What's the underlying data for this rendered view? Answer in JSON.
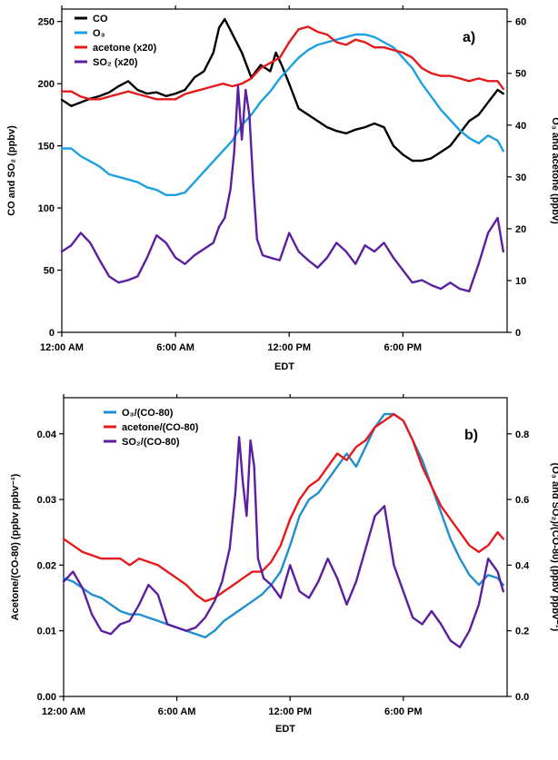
{
  "chart_data": [
    {
      "type": "line",
      "panel_label": "a)",
      "xlabel": "EDT",
      "x_unit": "hour of day (EDT)",
      "xlim": [
        0,
        23.5
      ],
      "xticks": [
        0,
        6,
        12,
        18
      ],
      "xtick_labels": [
        "12:00 AM",
        "6:00 AM",
        "12:00 PM",
        "6:00 PM"
      ],
      "ylabel_left": "CO and SO₂ (ppbv)",
      "ylim_left": [
        0,
        260
      ],
      "yticks_left": [
        0,
        50,
        100,
        150,
        200,
        250
      ],
      "ylabel_right": "O₃ and acetone (ppbv)",
      "ylim_right": [
        0,
        62.4
      ],
      "yticks_right": [
        0,
        10,
        20,
        30,
        40,
        50,
        60
      ],
      "grid": false,
      "legend_position": "top-left",
      "series": [
        {
          "name": "CO",
          "color": "#000000",
          "axis": "left",
          "x": [
            0,
            0.5,
            1,
            1.5,
            2,
            2.5,
            3,
            3.5,
            4,
            4.5,
            5,
            5.5,
            6,
            6.5,
            7,
            7.5,
            8,
            8.3,
            8.6,
            9,
            9.5,
            10,
            10.5,
            11,
            11.3,
            11.6,
            12,
            12.5,
            13,
            13.5,
            14,
            14.5,
            15,
            15.5,
            16,
            16.5,
            17,
            17.5,
            18,
            18.5,
            19,
            19.5,
            20,
            20.5,
            21,
            21.5,
            22,
            22.5,
            23,
            23.3
          ],
          "y": [
            187,
            182,
            185,
            188,
            190,
            193,
            198,
            202,
            195,
            192,
            193,
            190,
            192,
            195,
            205,
            210,
            225,
            245,
            252,
            240,
            225,
            205,
            215,
            210,
            225,
            215,
            200,
            180,
            175,
            170,
            165,
            162,
            160,
            163,
            165,
            168,
            165,
            150,
            143,
            138,
            138,
            140,
            145,
            150,
            160,
            170,
            175,
            185,
            195,
            192
          ]
        },
        {
          "name": "O₃",
          "color": "#1ba1e2",
          "axis": "right",
          "x": [
            0,
            0.5,
            1,
            1.5,
            2,
            2.5,
            3,
            3.5,
            4,
            4.5,
            5,
            5.5,
            6,
            6.5,
            7,
            7.5,
            8,
            8.5,
            9,
            9.5,
            10,
            10.5,
            11,
            11.5,
            12,
            12.5,
            13,
            13.5,
            14,
            14.5,
            15,
            15.5,
            16,
            16.5,
            17,
            17.5,
            18,
            18.5,
            19,
            19.5,
            20,
            20.5,
            21,
            21.5,
            22,
            22.5,
            23,
            23.3
          ],
          "y": [
            35.5,
            35.5,
            34,
            33,
            32,
            30.5,
            30,
            29.5,
            29,
            28,
            27.5,
            26.5,
            26.5,
            27,
            29,
            31,
            33,
            35,
            37,
            40,
            42,
            44.5,
            46.5,
            49,
            51,
            53,
            54.5,
            55.5,
            56,
            56.5,
            57,
            57.5,
            57.5,
            57,
            56,
            55,
            53,
            51,
            48,
            45.5,
            43,
            41,
            39,
            37.5,
            36.5,
            38,
            37,
            35
          ]
        },
        {
          "name": "acetone (x20)",
          "color": "#e41a1c",
          "axis": "right",
          "x": [
            0,
            0.5,
            1,
            1.5,
            2,
            2.5,
            3,
            3.5,
            4,
            4.5,
            5,
            5.5,
            6,
            6.5,
            7,
            7.5,
            8,
            8.5,
            9,
            9.5,
            10,
            10.5,
            11,
            11.5,
            12,
            12.5,
            13,
            13.5,
            14,
            14.5,
            15,
            15.5,
            16,
            16.5,
            17,
            17.5,
            18,
            18.5,
            19,
            19.5,
            20,
            20.5,
            21,
            21.5,
            22,
            22.5,
            23,
            23.3
          ],
          "y": [
            46.5,
            46.5,
            45.5,
            45,
            45,
            45.5,
            46,
            46.5,
            46,
            45.5,
            45,
            45,
            45,
            46,
            46.5,
            47,
            47.5,
            48,
            47.5,
            48,
            49,
            51,
            52,
            53,
            56,
            58.5,
            59,
            58,
            57.5,
            56,
            55.5,
            56.5,
            56,
            55,
            55,
            54.5,
            54,
            53,
            51,
            50,
            49.5,
            49.5,
            49,
            48.5,
            49,
            48.5,
            48.5,
            47
          ]
        },
        {
          "name": "SO₂ (x20)",
          "color": "#5b1fa0",
          "axis": "left",
          "x": [
            0,
            0.5,
            1,
            1.5,
            2,
            2.5,
            3,
            3.5,
            4,
            4.5,
            5,
            5.5,
            6,
            6.5,
            7,
            7.5,
            8,
            8.3,
            8.6,
            8.9,
            9.1,
            9.3,
            9.5,
            9.7,
            9.9,
            10.1,
            10.3,
            10.6,
            11,
            11.5,
            12,
            12.5,
            13,
            13.5,
            14,
            14.5,
            15,
            15.5,
            16,
            16.5,
            17,
            17.5,
            18,
            18.5,
            19,
            19.5,
            20,
            20.5,
            21,
            21.5,
            22,
            22.5,
            23,
            23.3
          ],
          "y": [
            65,
            70,
            80,
            72,
            58,
            45,
            40,
            42,
            45,
            60,
            78,
            72,
            60,
            55,
            62,
            67,
            72,
            85,
            92,
            115,
            145,
            198,
            155,
            195,
            175,
            120,
            75,
            62,
            60,
            58,
            80,
            65,
            58,
            52,
            60,
            72,
            65,
            55,
            70,
            65,
            72,
            60,
            50,
            40,
            42,
            38,
            35,
            40,
            35,
            33,
            55,
            80,
            92,
            65
          ]
        }
      ]
    },
    {
      "type": "line",
      "panel_label": "b)",
      "xlabel": "EDT",
      "x_unit": "hour of day (EDT)",
      "xlim": [
        0,
        23.5
      ],
      "xticks": [
        0,
        6,
        12,
        18
      ],
      "xtick_labels": [
        "12:00 AM",
        "6:00 AM",
        "12:00 PM",
        "6:00 PM"
      ],
      "ylabel_left": "Acetone/(CO-80) (ppbv ppbv⁻¹)",
      "ylim_left": [
        0,
        0.0455
      ],
      "yticks_left": [
        0.0,
        0.01,
        0.02,
        0.03,
        0.04
      ],
      "ytick_labels_left": [
        "0.00",
        "0.01",
        "0.02",
        "0.03",
        "0.04"
      ],
      "ylabel_right": "(O₃ and SO₂)/(CO-80) (ppbv ppbv⁻¹)",
      "ylim_right": [
        0,
        0.91
      ],
      "yticks_right": [
        0.0,
        0.2,
        0.4,
        0.6,
        0.8
      ],
      "ytick_labels_right": [
        "0.0",
        "0.2",
        "0.4",
        "0.6",
        "0.8"
      ],
      "grid": false,
      "legend_position": "top-left",
      "series": [
        {
          "name": "O₃/(CO-80)",
          "color": "#1f8fcf",
          "axis": "right",
          "x": [
            0,
            0.5,
            1,
            1.5,
            2,
            2.5,
            3,
            3.5,
            4,
            4.5,
            5,
            5.5,
            6,
            6.5,
            7,
            7.5,
            8,
            8.5,
            9,
            9.5,
            10,
            10.5,
            11,
            11.5,
            12,
            12.5,
            13,
            13.5,
            14,
            14.5,
            15,
            15.5,
            16,
            16.5,
            17,
            17.5,
            18,
            18.5,
            19,
            19.5,
            20,
            20.5,
            21,
            21.5,
            22,
            22.5,
            23,
            23.3
          ],
          "y": [
            0.36,
            0.35,
            0.33,
            0.31,
            0.3,
            0.28,
            0.26,
            0.25,
            0.25,
            0.24,
            0.23,
            0.22,
            0.21,
            0.2,
            0.19,
            0.18,
            0.2,
            0.23,
            0.25,
            0.27,
            0.29,
            0.31,
            0.34,
            0.38,
            0.46,
            0.55,
            0.6,
            0.62,
            0.66,
            0.7,
            0.74,
            0.7,
            0.76,
            0.82,
            0.86,
            0.86,
            0.84,
            0.78,
            0.72,
            0.64,
            0.56,
            0.48,
            0.42,
            0.37,
            0.34,
            0.37,
            0.36,
            0.34
          ]
        },
        {
          "name": "acetone/(CO-80)",
          "color": "#e41a1c",
          "axis": "left",
          "x": [
            0,
            0.5,
            1,
            1.5,
            2,
            2.5,
            3,
            3.5,
            4,
            4.5,
            5,
            5.5,
            6,
            6.5,
            7,
            7.5,
            8,
            8.5,
            9,
            9.5,
            10,
            10.5,
            11,
            11.5,
            12,
            12.5,
            13,
            13.5,
            14,
            14.5,
            15,
            15.5,
            16,
            16.5,
            17,
            17.5,
            18,
            18.5,
            19,
            19.5,
            20,
            20.5,
            21,
            21.5,
            22,
            22.5,
            23,
            23.3
          ],
          "y": [
            0.024,
            0.023,
            0.022,
            0.0215,
            0.021,
            0.021,
            0.021,
            0.02,
            0.021,
            0.0205,
            0.02,
            0.019,
            0.018,
            0.017,
            0.0155,
            0.0145,
            0.015,
            0.016,
            0.017,
            0.018,
            0.019,
            0.019,
            0.0205,
            0.023,
            0.027,
            0.03,
            0.032,
            0.033,
            0.035,
            0.037,
            0.036,
            0.038,
            0.039,
            0.041,
            0.042,
            0.043,
            0.042,
            0.039,
            0.035,
            0.032,
            0.029,
            0.027,
            0.025,
            0.023,
            0.022,
            0.023,
            0.025,
            0.024
          ]
        },
        {
          "name": "SO₂/(CO-80)",
          "color": "#5b1fa0",
          "axis": "right",
          "x": [
            0,
            0.5,
            1,
            1.5,
            2,
            2.5,
            3,
            3.5,
            4,
            4.5,
            5,
            5.5,
            6,
            6.5,
            7,
            7.5,
            8,
            8.4,
            8.8,
            9.1,
            9.3,
            9.5,
            9.7,
            9.9,
            10.1,
            10.3,
            10.6,
            11,
            11.5,
            12,
            12.5,
            13,
            13.5,
            14,
            14.5,
            15,
            15.5,
            16,
            16.5,
            17,
            17.5,
            18,
            18.5,
            19,
            19.5,
            20,
            20.5,
            21,
            21.5,
            22,
            22.5,
            23,
            23.3
          ],
          "y": [
            0.35,
            0.38,
            0.33,
            0.25,
            0.2,
            0.19,
            0.22,
            0.23,
            0.28,
            0.34,
            0.31,
            0.22,
            0.21,
            0.2,
            0.21,
            0.24,
            0.29,
            0.35,
            0.45,
            0.62,
            0.79,
            0.65,
            0.55,
            0.78,
            0.7,
            0.42,
            0.36,
            0.34,
            0.3,
            0.4,
            0.32,
            0.3,
            0.35,
            0.42,
            0.36,
            0.28,
            0.35,
            0.45,
            0.55,
            0.58,
            0.4,
            0.32,
            0.24,
            0.22,
            0.26,
            0.22,
            0.17,
            0.15,
            0.2,
            0.28,
            0.42,
            0.38,
            0.32
          ]
        }
      ]
    }
  ]
}
